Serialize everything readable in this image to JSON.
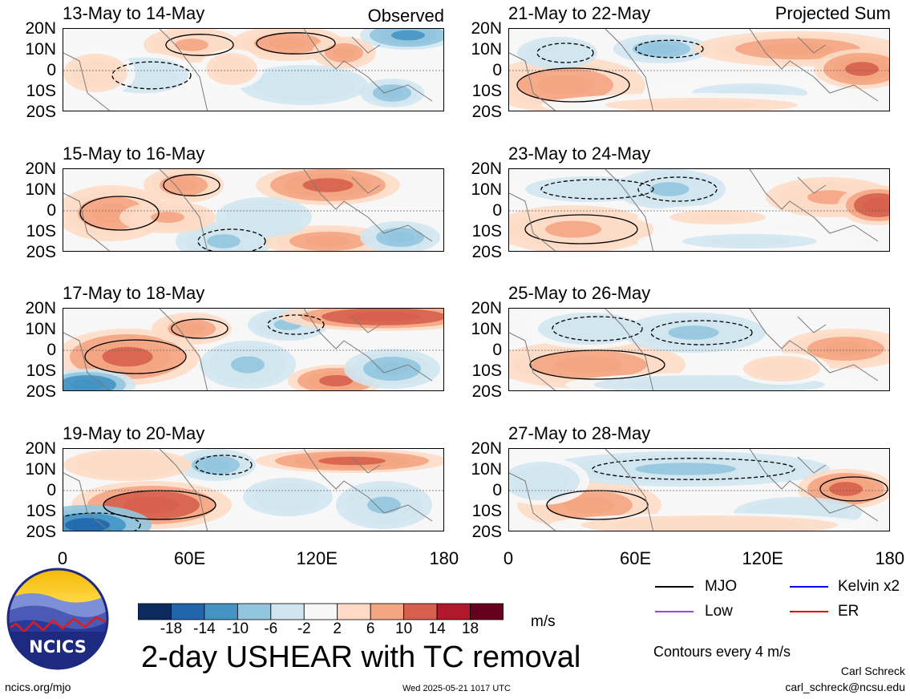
{
  "title": "2-day USHEAR with TC removal",
  "panel_labels": {
    "observed": "Observed",
    "projected": "Projected Sum"
  },
  "panels": [
    {
      "col": 0,
      "row": 0,
      "title": "13-May to 14-May",
      "tag": "observed"
    },
    {
      "col": 0,
      "row": 1,
      "title": "15-May to 16-May"
    },
    {
      "col": 0,
      "row": 2,
      "title": "17-May to 18-May"
    },
    {
      "col": 0,
      "row": 3,
      "title": "19-May to 20-May"
    },
    {
      "col": 1,
      "row": 0,
      "title": "21-May to 22-May",
      "tag": "projected"
    },
    {
      "col": 1,
      "row": 1,
      "title": "23-May to 24-May"
    },
    {
      "col": 1,
      "row": 2,
      "title": "25-May to 26-May"
    },
    {
      "col": 1,
      "row": 3,
      "title": "27-May to 28-May"
    }
  ],
  "lat_ticks": [
    "20N",
    "10N",
    "0",
    "10S",
    "20S"
  ],
  "lon_ticks": [
    "0",
    "60E",
    "120E",
    "180"
  ],
  "colorbar": {
    "unit": "m/s",
    "labels": [
      "-18",
      "-14",
      "-10",
      "-6",
      "-2",
      "2",
      "6",
      "10",
      "14",
      "18"
    ],
    "colors": [
      "#0b2a5e",
      "#2166ac",
      "#4393c3",
      "#92c5de",
      "#d1e5f0",
      "#f7f7f7",
      "#fddbc7",
      "#f4a582",
      "#d6604d",
      "#b2182b",
      "#67001f"
    ]
  },
  "legend": {
    "items": [
      {
        "label": "MJO",
        "color": "#000000"
      },
      {
        "label": "Kelvin x2",
        "color": "#0000ff"
      },
      {
        "label": "Low",
        "color": "#a040e0"
      },
      {
        "label": "ER",
        "color": "#e00000"
      }
    ],
    "contour_note": "Contours every 4 m/s"
  },
  "logo": {
    "text": "NCICS"
  },
  "footer": {
    "url": "ncics.org/mjo",
    "timestamp": "Wed 2025-05-21 1017 UTC",
    "author": "Carl Schreck",
    "email": "carl_schreck@ncsu.edu"
  },
  "chart_data": {
    "type": "heatmap",
    "variable": "2-day USHEAR with TC removal",
    "units": "m/s",
    "x_range": [
      "0",
      "180"
    ],
    "y_range": [
      "20S",
      "20N"
    ],
    "levels": [
      -18,
      -14,
      -10,
      -6,
      -2,
      2,
      6,
      10,
      14,
      18
    ]
  }
}
